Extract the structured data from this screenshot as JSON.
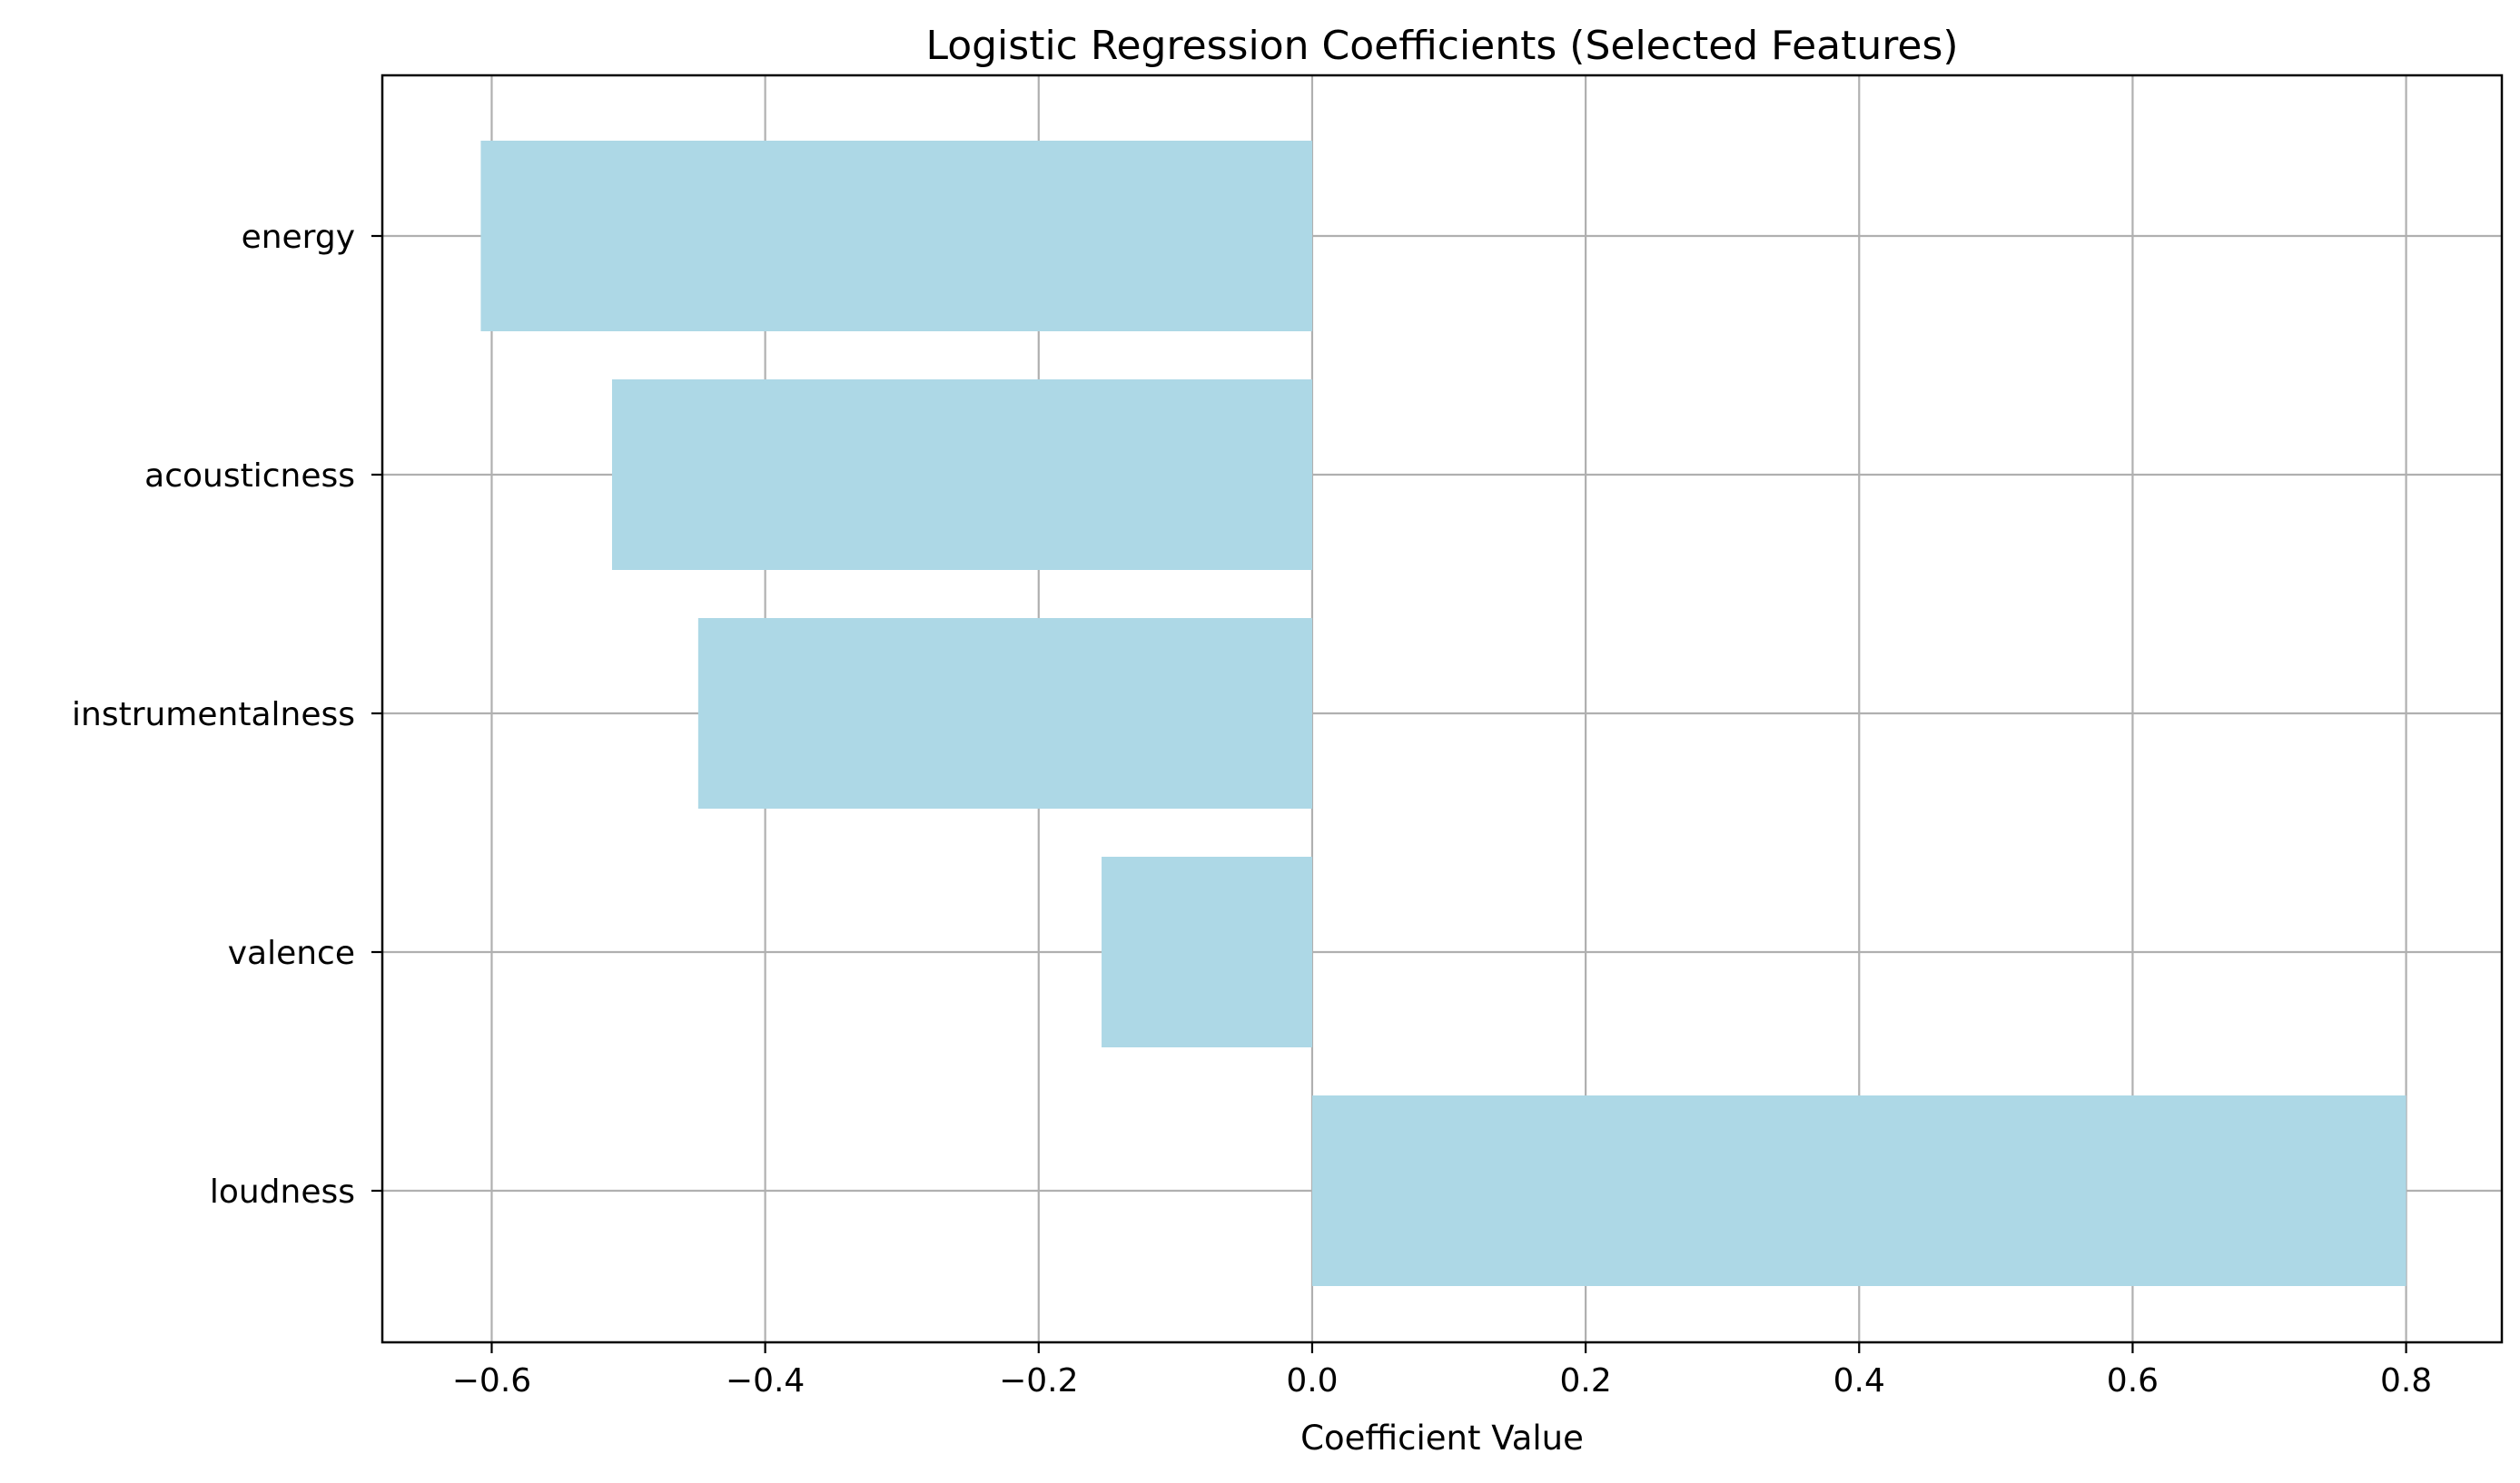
{
  "chart_data": {
    "type": "bar",
    "orientation": "horizontal",
    "title": "Logistic Regression Coefficients (Selected Features)",
    "xlabel": "Coefficient Value",
    "ylabel": "",
    "categories": [
      "energy",
      "acousticness",
      "instrumentalness",
      "valence",
      "loudness"
    ],
    "values": [
      -0.608,
      -0.512,
      -0.449,
      -0.154,
      0.8
    ],
    "xlim": [
      -0.68,
      0.87
    ],
    "xticks": [
      -0.6,
      -0.4,
      -0.2,
      0.0,
      0.2,
      0.4,
      0.6,
      0.8
    ],
    "xtick_labels": [
      "−0.6",
      "−0.4",
      "−0.2",
      "0.0",
      "0.2",
      "0.4",
      "0.6",
      "0.8"
    ],
    "grid": true,
    "bar_color": "#add8e6",
    "grid_color": "#b0b0b0"
  }
}
